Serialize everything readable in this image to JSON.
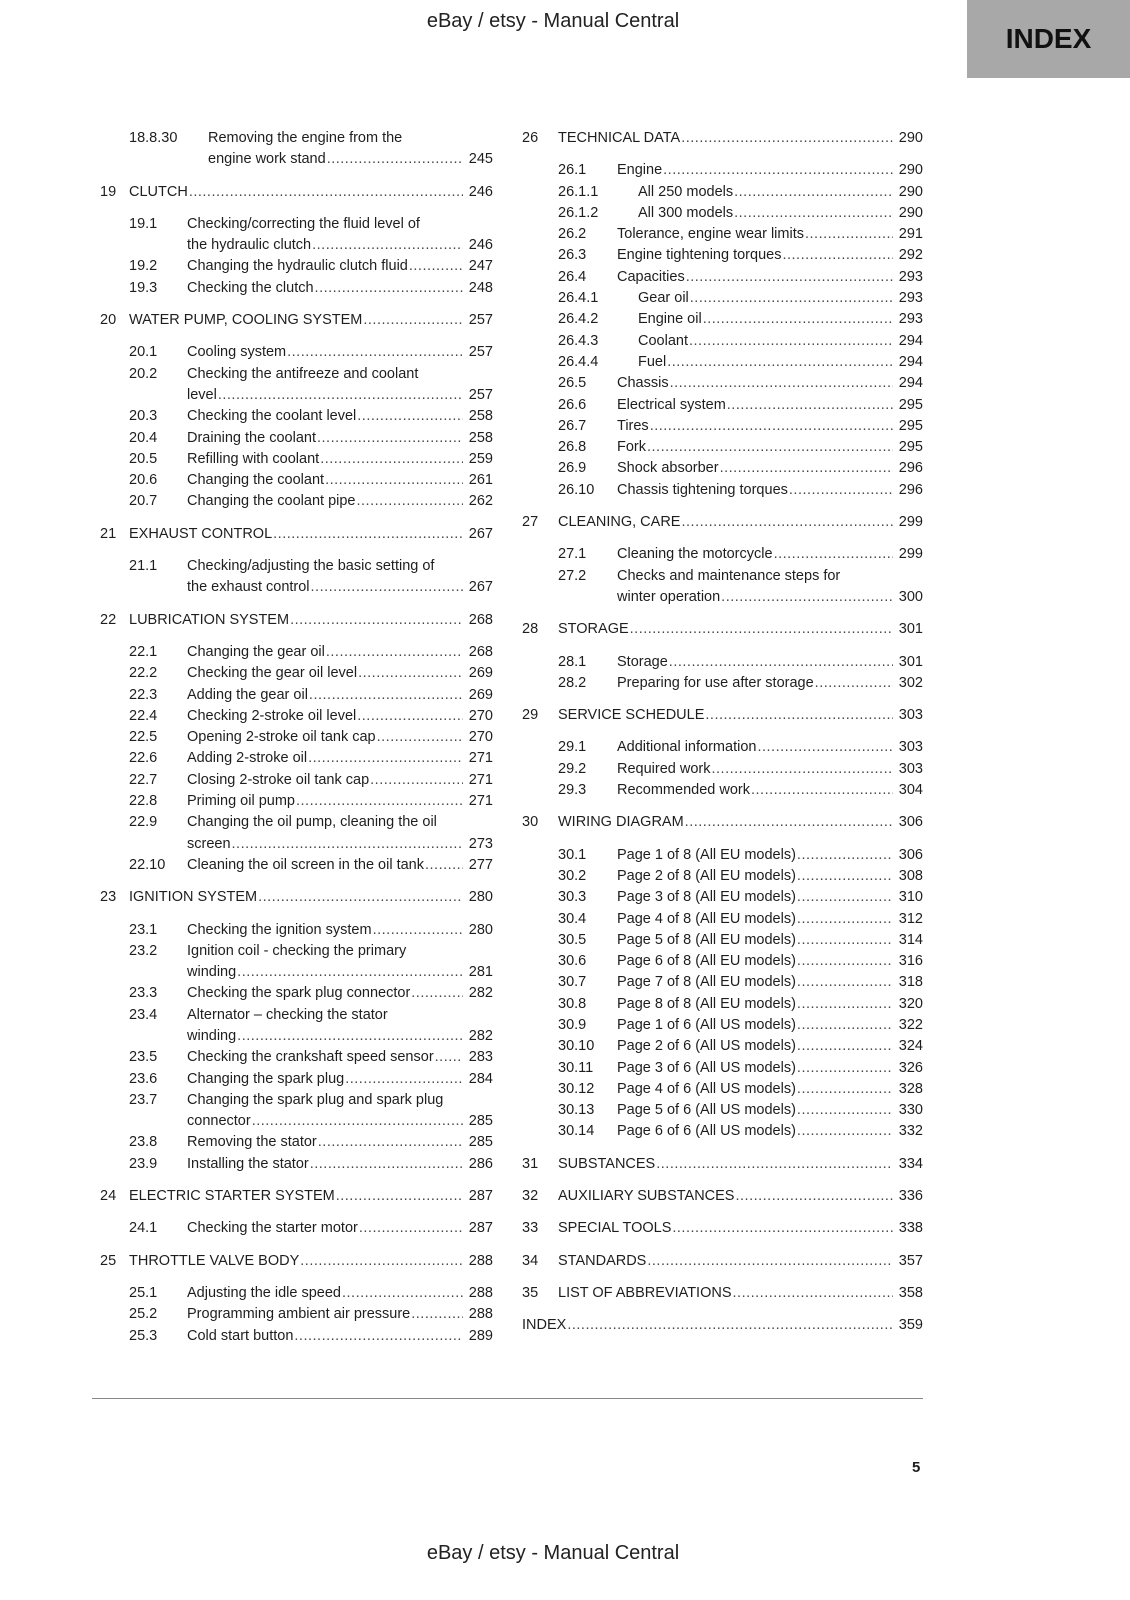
{
  "header": {
    "title": "eBay / etsy - Manual Central",
    "tab": "INDEX"
  },
  "footer": {
    "title": "eBay / etsy - Manual Central",
    "page_number": "5"
  },
  "columns": {
    "left": [
      {
        "level": "sub3",
        "num": "18.8.30",
        "title": [
          "Removing the engine from the",
          "engine work stand"
        ],
        "page": "245"
      },
      {
        "level": "chap",
        "num": "19",
        "title": [
          "CLUTCH"
        ],
        "page": "246"
      },
      {
        "level": "sub",
        "num": "19.1",
        "title": [
          "Checking/correcting the fluid level of",
          "the hydraulic clutch"
        ],
        "page": "246"
      },
      {
        "level": "sub",
        "num": "19.2",
        "title": [
          "Changing the hydraulic clutch fluid"
        ],
        "page": "247"
      },
      {
        "level": "sub",
        "num": "19.3",
        "title": [
          "Checking the clutch"
        ],
        "page": "248"
      },
      {
        "level": "chap",
        "num": "20",
        "title": [
          "WATER PUMP, COOLING SYSTEM"
        ],
        "page": "257"
      },
      {
        "level": "sub",
        "num": "20.1",
        "title": [
          "Cooling system"
        ],
        "page": "257"
      },
      {
        "level": "sub",
        "num": "20.2",
        "title": [
          "Checking the antifreeze and coolant",
          "level"
        ],
        "page": "257"
      },
      {
        "level": "sub",
        "num": "20.3",
        "title": [
          "Checking the coolant level"
        ],
        "page": "258"
      },
      {
        "level": "sub",
        "num": "20.4",
        "title": [
          "Draining the coolant"
        ],
        "page": "258"
      },
      {
        "level": "sub",
        "num": "20.5",
        "title": [
          "Refilling with coolant"
        ],
        "page": "259"
      },
      {
        "level": "sub",
        "num": "20.6",
        "title": [
          "Changing the coolant"
        ],
        "page": "261"
      },
      {
        "level": "sub",
        "num": "20.7",
        "title": [
          "Changing the coolant pipe"
        ],
        "page": "262"
      },
      {
        "level": "chap",
        "num": "21",
        "title": [
          "EXHAUST CONTROL"
        ],
        "page": "267"
      },
      {
        "level": "sub",
        "num": "21.1",
        "title": [
          "Checking/adjusting the basic setting of",
          "the exhaust control"
        ],
        "page": "267"
      },
      {
        "level": "chap",
        "num": "22",
        "title": [
          "LUBRICATION SYSTEM"
        ],
        "page": "268"
      },
      {
        "level": "sub",
        "num": "22.1",
        "title": [
          "Changing the gear oil"
        ],
        "page": "268"
      },
      {
        "level": "sub",
        "num": "22.2",
        "title": [
          "Checking the gear oil level"
        ],
        "page": "269"
      },
      {
        "level": "sub",
        "num": "22.3",
        "title": [
          "Adding the gear oil"
        ],
        "page": "269"
      },
      {
        "level": "sub",
        "num": "22.4",
        "title": [
          "Checking 2-stroke oil level"
        ],
        "page": "270"
      },
      {
        "level": "sub",
        "num": "22.5",
        "title": [
          "Opening 2-stroke oil tank cap"
        ],
        "page": "270"
      },
      {
        "level": "sub",
        "num": "22.6",
        "title": [
          "Adding 2-stroke oil"
        ],
        "page": "271"
      },
      {
        "level": "sub",
        "num": "22.7",
        "title": [
          "Closing 2-stroke oil tank cap"
        ],
        "page": "271"
      },
      {
        "level": "sub",
        "num": "22.8",
        "title": [
          "Priming oil pump"
        ],
        "page": "271"
      },
      {
        "level": "sub",
        "num": "22.9",
        "title": [
          "Changing the oil pump, cleaning the oil",
          "screen"
        ],
        "page": "273"
      },
      {
        "level": "sub",
        "num": "22.10",
        "title": [
          "Cleaning the oil screen in the oil tank"
        ],
        "page": "277"
      },
      {
        "level": "chap",
        "num": "23",
        "title": [
          "IGNITION SYSTEM"
        ],
        "page": "280"
      },
      {
        "level": "sub",
        "num": "23.1",
        "title": [
          "Checking the ignition system"
        ],
        "page": "280"
      },
      {
        "level": "sub",
        "num": "23.2",
        "title": [
          "Ignition coil - checking the primary",
          "winding"
        ],
        "page": "281"
      },
      {
        "level": "sub",
        "num": "23.3",
        "title": [
          "Checking the spark plug connector"
        ],
        "page": "282"
      },
      {
        "level": "sub",
        "num": "23.4",
        "title": [
          "Alternator – checking the stator",
          "winding"
        ],
        "page": "282"
      },
      {
        "level": "sub",
        "num": "23.5",
        "title": [
          "Checking the crankshaft speed sensor"
        ],
        "page": "283"
      },
      {
        "level": "sub",
        "num": "23.6",
        "title": [
          "Changing the spark plug"
        ],
        "page": "284"
      },
      {
        "level": "sub",
        "num": "23.7",
        "title": [
          "Changing the spark plug and spark plug",
          "connector"
        ],
        "page": "285"
      },
      {
        "level": "sub",
        "num": "23.8",
        "title": [
          "Removing the stator"
        ],
        "page": "285"
      },
      {
        "level": "sub",
        "num": "23.9",
        "title": [
          "Installing the stator"
        ],
        "page": "286"
      },
      {
        "level": "chap",
        "num": "24",
        "title": [
          "ELECTRIC STARTER SYSTEM"
        ],
        "page": "287"
      },
      {
        "level": "sub",
        "num": "24.1",
        "title": [
          "Checking the starter motor"
        ],
        "page": "287"
      },
      {
        "level": "chap",
        "num": "25",
        "title": [
          "THROTTLE VALVE BODY"
        ],
        "page": "288"
      },
      {
        "level": "sub",
        "num": "25.1",
        "title": [
          "Adjusting the idle speed"
        ],
        "page": "288"
      },
      {
        "level": "sub",
        "num": "25.2",
        "title": [
          "Programming ambient air pressure"
        ],
        "page": "288"
      },
      {
        "level": "sub",
        "num": "25.3",
        "title": [
          "Cold start button"
        ],
        "page": "289"
      }
    ],
    "right": [
      {
        "level": "chap",
        "num": "26",
        "title": [
          "TECHNICAL DATA"
        ],
        "page": "290"
      },
      {
        "level": "sub",
        "num": "26.1",
        "title": [
          "Engine"
        ],
        "page": "290"
      },
      {
        "level": "sub3",
        "num": "26.1.1",
        "title": [
          "All 250 models"
        ],
        "page": "290"
      },
      {
        "level": "sub3",
        "num": "26.1.2",
        "title": [
          "All 300 models"
        ],
        "page": "290"
      },
      {
        "level": "sub",
        "num": "26.2",
        "title": [
          "Tolerance, engine wear limits"
        ],
        "page": "291"
      },
      {
        "level": "sub",
        "num": "26.3",
        "title": [
          "Engine tightening torques"
        ],
        "page": "292"
      },
      {
        "level": "sub",
        "num": "26.4",
        "title": [
          "Capacities"
        ],
        "page": "293"
      },
      {
        "level": "sub3",
        "num": "26.4.1",
        "title": [
          "Gear oil"
        ],
        "page": "293"
      },
      {
        "level": "sub3",
        "num": "26.4.2",
        "title": [
          "Engine oil"
        ],
        "page": "293"
      },
      {
        "level": "sub3",
        "num": "26.4.3",
        "title": [
          "Coolant"
        ],
        "page": "294"
      },
      {
        "level": "sub3",
        "num": "26.4.4",
        "title": [
          "Fuel"
        ],
        "page": "294"
      },
      {
        "level": "sub",
        "num": "26.5",
        "title": [
          "Chassis"
        ],
        "page": "294"
      },
      {
        "level": "sub",
        "num": "26.6",
        "title": [
          "Electrical system"
        ],
        "page": "295"
      },
      {
        "level": "sub",
        "num": "26.7",
        "title": [
          "Tires"
        ],
        "page": "295"
      },
      {
        "level": "sub",
        "num": "26.8",
        "title": [
          "Fork"
        ],
        "page": "295"
      },
      {
        "level": "sub",
        "num": "26.9",
        "title": [
          "Shock absorber"
        ],
        "page": "296"
      },
      {
        "level": "sub",
        "num": "26.10",
        "title": [
          "Chassis tightening torques"
        ],
        "page": "296"
      },
      {
        "level": "chap",
        "num": "27",
        "title": [
          "CLEANING, CARE"
        ],
        "page": "299"
      },
      {
        "level": "sub",
        "num": "27.1",
        "title": [
          "Cleaning the motorcycle"
        ],
        "page": "299"
      },
      {
        "level": "sub",
        "num": "27.2",
        "title": [
          "Checks and maintenance steps for",
          "winter operation"
        ],
        "page": "300"
      },
      {
        "level": "chap",
        "num": "28",
        "title": [
          "STORAGE"
        ],
        "page": "301"
      },
      {
        "level": "sub",
        "num": "28.1",
        "title": [
          "Storage"
        ],
        "page": "301"
      },
      {
        "level": "sub",
        "num": "28.2",
        "title": [
          "Preparing for use after storage"
        ],
        "page": "302"
      },
      {
        "level": "chap",
        "num": "29",
        "title": [
          "SERVICE SCHEDULE"
        ],
        "page": "303"
      },
      {
        "level": "sub",
        "num": "29.1",
        "title": [
          "Additional information"
        ],
        "page": "303"
      },
      {
        "level": "sub",
        "num": "29.2",
        "title": [
          "Required work"
        ],
        "page": "303"
      },
      {
        "level": "sub",
        "num": "29.3",
        "title": [
          "Recommended work"
        ],
        "page": "304"
      },
      {
        "level": "chap",
        "num": "30",
        "title": [
          "WIRING DIAGRAM"
        ],
        "page": "306"
      },
      {
        "level": "sub",
        "num": "30.1",
        "title": [
          "Page 1 of 8 (All EU models)"
        ],
        "page": "306"
      },
      {
        "level": "sub",
        "num": "30.2",
        "title": [
          "Page 2 of 8 (All EU models)"
        ],
        "page": "308"
      },
      {
        "level": "sub",
        "num": "30.3",
        "title": [
          "Page 3 of 8 (All EU models)"
        ],
        "page": "310"
      },
      {
        "level": "sub",
        "num": "30.4",
        "title": [
          "Page 4 of 8 (All EU models)"
        ],
        "page": "312"
      },
      {
        "level": "sub",
        "num": "30.5",
        "title": [
          "Page 5 of 8 (All EU models)"
        ],
        "page": "314"
      },
      {
        "level": "sub",
        "num": "30.6",
        "title": [
          "Page 6 of 8 (All EU models)"
        ],
        "page": "316"
      },
      {
        "level": "sub",
        "num": "30.7",
        "title": [
          "Page 7 of 8 (All EU models)"
        ],
        "page": "318"
      },
      {
        "level": "sub",
        "num": "30.8",
        "title": [
          "Page 8 of 8 (All EU models)"
        ],
        "page": "320"
      },
      {
        "level": "sub",
        "num": "30.9",
        "title": [
          "Page 1 of 6 (All US models)"
        ],
        "page": "322"
      },
      {
        "level": "sub",
        "num": "30.10",
        "title": [
          "Page 2 of 6 (All US models)"
        ],
        "page": "324"
      },
      {
        "level": "sub",
        "num": "30.11",
        "title": [
          "Page 3 of 6 (All US models)"
        ],
        "page": "326"
      },
      {
        "level": "sub",
        "num": "30.12",
        "title": [
          "Page 4 of 6 (All US models)"
        ],
        "page": "328"
      },
      {
        "level": "sub",
        "num": "30.13",
        "title": [
          "Page 5 of 6 (All US models)"
        ],
        "page": "330"
      },
      {
        "level": "sub",
        "num": "30.14",
        "title": [
          "Page 6 of 6 (All US models)"
        ],
        "page": "332"
      },
      {
        "level": "chap",
        "num": "31",
        "title": [
          "SUBSTANCES"
        ],
        "page": "334"
      },
      {
        "level": "chap",
        "num": "32",
        "title": [
          "AUXILIARY SUBSTANCES"
        ],
        "page": "336"
      },
      {
        "level": "chap",
        "num": "33",
        "title": [
          "SPECIAL TOOLS"
        ],
        "page": "338"
      },
      {
        "level": "chap",
        "num": "34",
        "title": [
          "STANDARDS"
        ],
        "page": "357"
      },
      {
        "level": "chap",
        "num": "35",
        "title": [
          "LIST OF ABBREVIATIONS"
        ],
        "page": "358"
      },
      {
        "level": "chap",
        "num": "",
        "title": [
          "INDEX"
        ],
        "page": "359"
      }
    ]
  }
}
